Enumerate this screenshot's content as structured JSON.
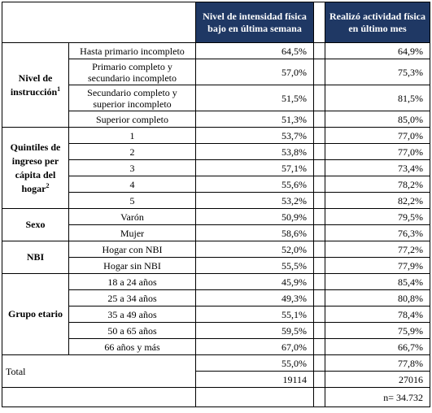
{
  "headers": {
    "col1": "Nivel de intensidad física bajo en última semana",
    "col2": "Realizó actividad física en último mes"
  },
  "groups": {
    "instruccion": {
      "label": "Nivel de instrucción",
      "sup": "1",
      "rows": [
        {
          "sub": "Hasta primario incompleto",
          "v1": "64,5%",
          "v2": "64,9%"
        },
        {
          "sub": "Primario completo y secundario incompleto",
          "v1": "57,0%",
          "v2": "75,3%"
        },
        {
          "sub": "Secundario completo y superior incompleto",
          "v1": "51,5%",
          "v2": "81,5%"
        },
        {
          "sub": "Superior completo",
          "v1": "51,3%",
          "v2": "85,0%"
        }
      ]
    },
    "quintiles": {
      "label": "Quintiles de ingreso per cápita del hogar",
      "sup": "2",
      "rows": [
        {
          "sub": "1",
          "v1": "53,7%",
          "v2": "77,0%"
        },
        {
          "sub": "2",
          "v1": "53,8%",
          "v2": "77,0%"
        },
        {
          "sub": "3",
          "v1": "57,1%",
          "v2": "73,4%"
        },
        {
          "sub": "4",
          "v1": "55,6%",
          "v2": "78,2%"
        },
        {
          "sub": "5",
          "v1": "53,2%",
          "v2": "82,2%"
        }
      ]
    },
    "sexo": {
      "label": "Sexo",
      "rows": [
        {
          "sub": "Varón",
          "v1": "50,9%",
          "v2": "79,5%"
        },
        {
          "sub": "Mujer",
          "v1": "58,6%",
          "v2": "76,3%"
        }
      ]
    },
    "nbi": {
      "label": "NBI",
      "rows": [
        {
          "sub": "Hogar con NBI",
          "v1": "52,0%",
          "v2": "77,2%"
        },
        {
          "sub": "Hogar sin NBI",
          "v1": "55,5%",
          "v2": "77,9%"
        }
      ]
    },
    "grupo": {
      "label": "Grupo etario",
      "rows": [
        {
          "sub": "18 a 24 años",
          "v1": "45,9%",
          "v2": "85,4%"
        },
        {
          "sub": "25 a 34 años",
          "v1": "49,3%",
          "v2": "80,8%"
        },
        {
          "sub": "35 a 49 años",
          "v1": "55,1%",
          "v2": "78,4%"
        },
        {
          "sub": "50 a 65 años",
          "v1": "59,5%",
          "v2": "75,9%"
        },
        {
          "sub": "66 años y más",
          "v1": "67,0%",
          "v2": "66,7%"
        }
      ]
    }
  },
  "total": {
    "label": "Total",
    "pct1": "55,0%",
    "pct2": "77,8%",
    "n1": "19114",
    "n2": "27016",
    "n_total": "n= 34.732"
  }
}
